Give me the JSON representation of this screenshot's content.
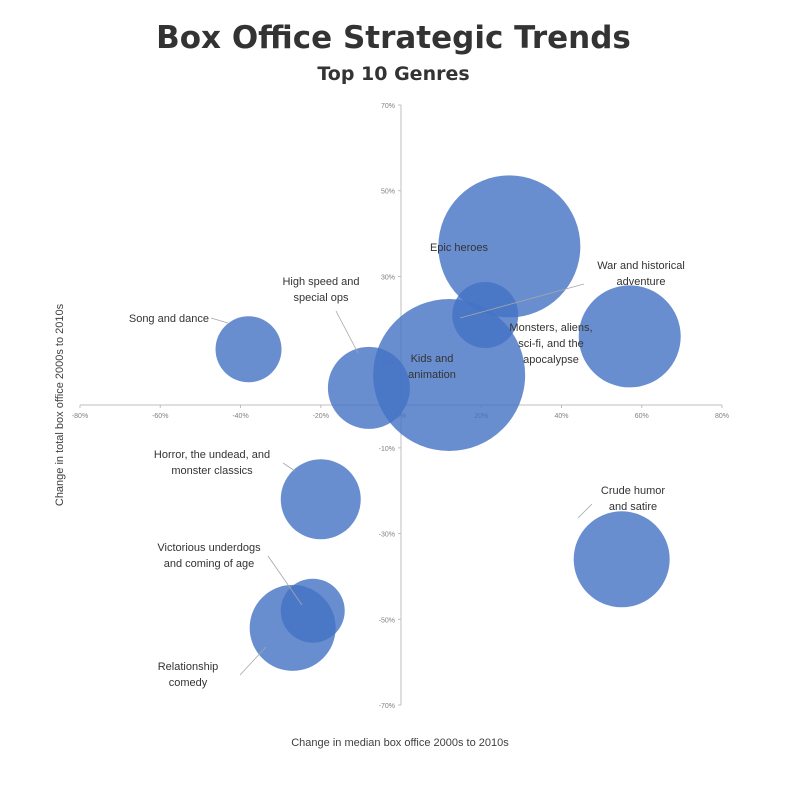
{
  "chart_data": {
    "type": "bubble",
    "title": "Box Office Strategic Trends",
    "subtitle": "Top 10 Genres",
    "xlabel": "Change in median box office 2000s to 2010s",
    "ylabel": "Change in total box office 2000s to 2010s",
    "xlim": [
      -80,
      80
    ],
    "ylim": [
      -70,
      70
    ],
    "grid": false,
    "color": "#4472C4",
    "x_ticks": [
      {
        "value": -80,
        "label": "-80%"
      },
      {
        "value": -60,
        "label": "-60%"
      },
      {
        "value": -40,
        "label": "-40%"
      },
      {
        "value": -20,
        "label": "-20%"
      },
      {
        "value": 0,
        "label": "0%"
      },
      {
        "value": 20,
        "label": "20%"
      },
      {
        "value": 40,
        "label": "40%"
      },
      {
        "value": 60,
        "label": "60%"
      },
      {
        "value": 80,
        "label": "80%"
      }
    ],
    "y_ticks": [
      {
        "value": 70,
        "label": "70%"
      },
      {
        "value": 50,
        "label": "50%"
      },
      {
        "value": 30,
        "label": "30%"
      },
      {
        "value": 10,
        "label": "10%"
      },
      {
        "value": -10,
        "label": "-10%"
      },
      {
        "value": -30,
        "label": "-30%"
      },
      {
        "value": -50,
        "label": "-50%"
      },
      {
        "value": -70,
        "label": "-70%"
      }
    ],
    "points": [
      {
        "label": "Epic heroes",
        "x": 27,
        "y": 37,
        "r": 71
      },
      {
        "label": "Kids and animation",
        "x": 12,
        "y": 7,
        "r": 76
      },
      {
        "label": "High speed and special ops",
        "x": -8,
        "y": 4,
        "r": 41
      },
      {
        "label": "War and historical adventure",
        "x": 21,
        "y": 21,
        "r": 33
      },
      {
        "label": "Monsters, aliens, sci-fi, and the apocalypse",
        "x": 57,
        "y": 16,
        "r": 51
      },
      {
        "label": "Song and dance",
        "x": -38,
        "y": 13,
        "r": 33
      },
      {
        "label": "Horror, the undead, and monster classics",
        "x": -20,
        "y": -22,
        "r": 40
      },
      {
        "label": "Crude humor and satire",
        "x": 55,
        "y": -36,
        "r": 48
      },
      {
        "label": "Victorious underdogs and coming of age",
        "x": -22,
        "y": -48,
        "r": 32
      },
      {
        "label": "Relationship comedy",
        "x": -27,
        "y": -52,
        "r": 43
      }
    ]
  }
}
